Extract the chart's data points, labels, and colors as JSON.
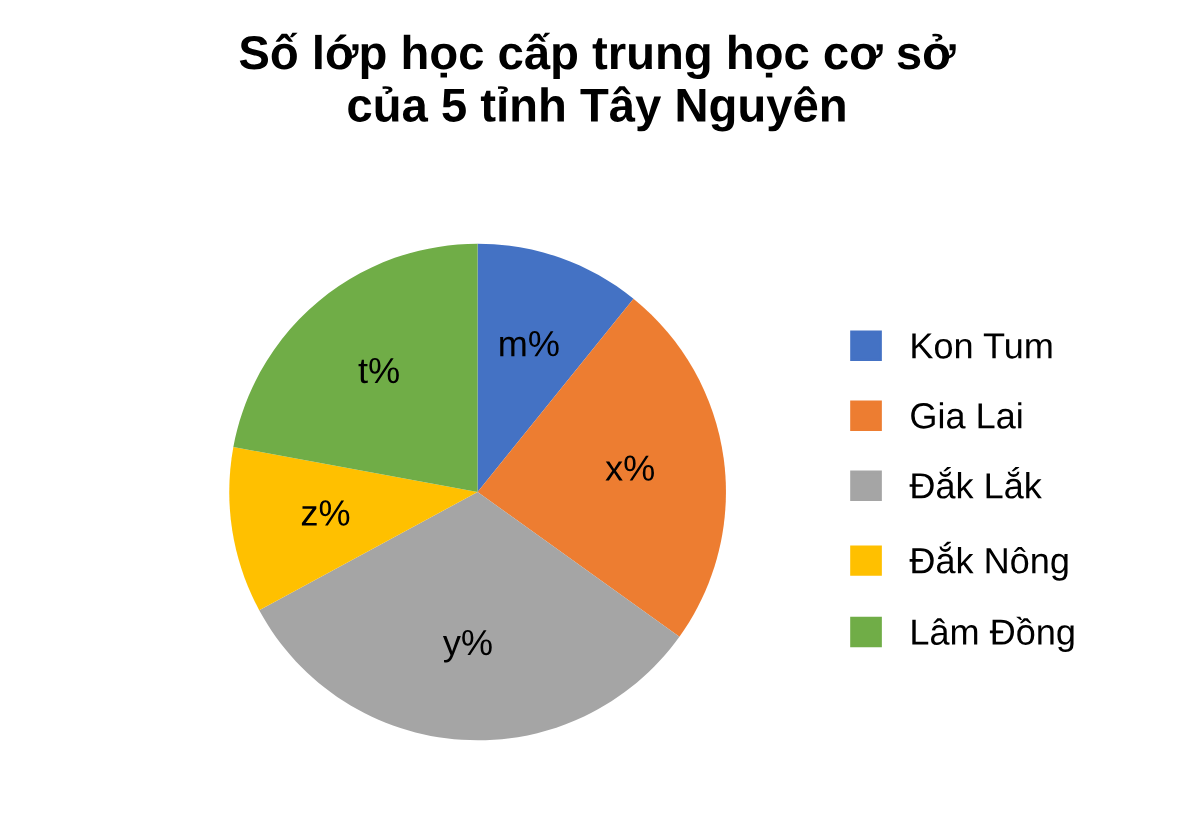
{
  "chart_data": {
    "type": "pie",
    "title": "Số lớp học cấp trung học cơ sở\ncủa 5 tỉnh Tây Nguyên",
    "categories": [
      "Kon Tum",
      "Gia Lai",
      "Đắk Lắk",
      "Đắk Nông",
      "Lâm Đồng"
    ],
    "values": [
      10.8,
      24.1,
      32.2,
      10.8,
      22.1
    ],
    "value_labels": [
      "m%",
      "x%",
      "y%",
      "z%",
      "t%"
    ],
    "colors": [
      "#4472c4",
      "#ed7d31",
      "#a5a5a5",
      "#ffc000",
      "#70ad47"
    ],
    "legend": "right"
  }
}
